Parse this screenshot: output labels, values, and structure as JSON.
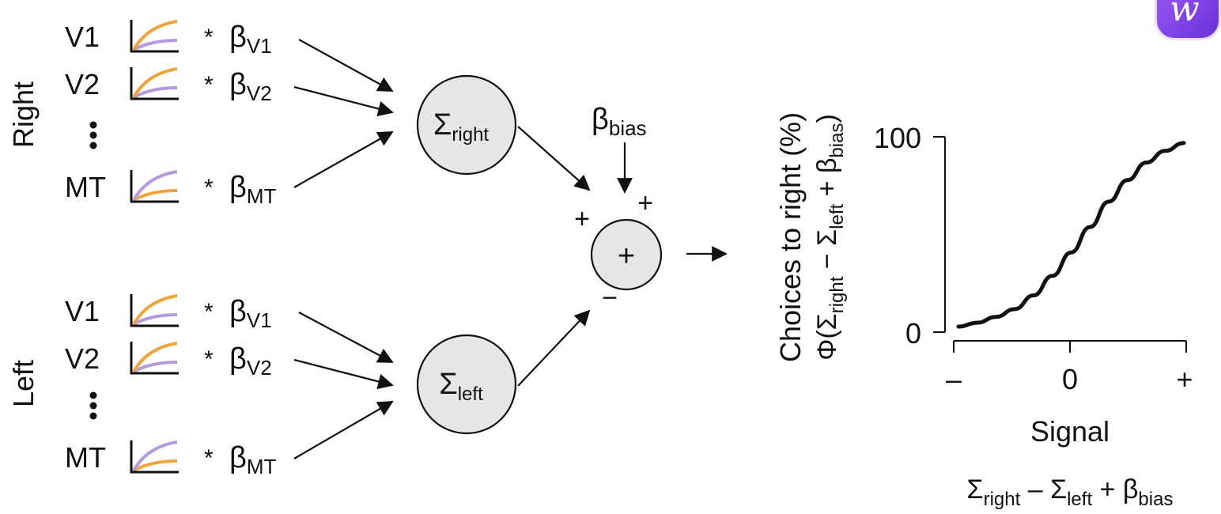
{
  "groups": {
    "right": "Right",
    "left": "Left"
  },
  "inputs": {
    "right": [
      {
        "area": "V1",
        "op": "*",
        "beta": "β",
        "sub": "V1"
      },
      {
        "area": "V2",
        "op": "*",
        "beta": "β",
        "sub": "V2"
      },
      {
        "area": "MT",
        "op": "*",
        "beta": "β",
        "sub": "MT"
      }
    ],
    "left": [
      {
        "area": "V1",
        "op": "*",
        "beta": "β",
        "sub": "V1"
      },
      {
        "area": "V2",
        "op": "*",
        "beta": "β",
        "sub": "V2"
      },
      {
        "area": "MT",
        "op": "*",
        "beta": "β",
        "sub": "MT"
      }
    ]
  },
  "sums": {
    "right": {
      "symbol": "Σ",
      "sub": "right"
    },
    "left": {
      "symbol": "Σ",
      "sub": "left"
    }
  },
  "bias": {
    "beta": "β",
    "sub": "bias"
  },
  "signs": {
    "plus_left": "+",
    "plus_bias": "+",
    "minus": "−",
    "node": "+"
  },
  "colors": {
    "orange": "#f0a53a",
    "purple": "#b39be0",
    "node_fill": "#e6e6e6"
  },
  "ylabel": {
    "line1": "Choices to right (%)",
    "line2_parts": [
      {
        "t": "Φ(Σ",
        "sub": "right"
      },
      {
        "t": " − Σ",
        "sub": "left"
      },
      {
        "t": " + β",
        "sub": "bias"
      },
      {
        "t": ")"
      }
    ]
  },
  "chart_data": {
    "type": "line",
    "x": [
      -3,
      -2.5,
      -2,
      -1.5,
      -1,
      -0.5,
      0,
      0.5,
      1,
      1.5,
      2,
      2.5,
      3
    ],
    "y": [
      2,
      4,
      7,
      11,
      18,
      28,
      40,
      53,
      66,
      77,
      86,
      92,
      96
    ],
    "y_ticks": [
      "100",
      "0"
    ],
    "x_ticks": [
      "–",
      "0",
      "+"
    ],
    "xlabel": "Signal",
    "xlabel2_parts": [
      {
        "t": "Σ",
        "sub": "right"
      },
      {
        "t": " – Σ",
        "sub": "left"
      },
      {
        "t": " + β",
        "sub": "bias"
      }
    ],
    "ylim": [
      0,
      100
    ]
  }
}
